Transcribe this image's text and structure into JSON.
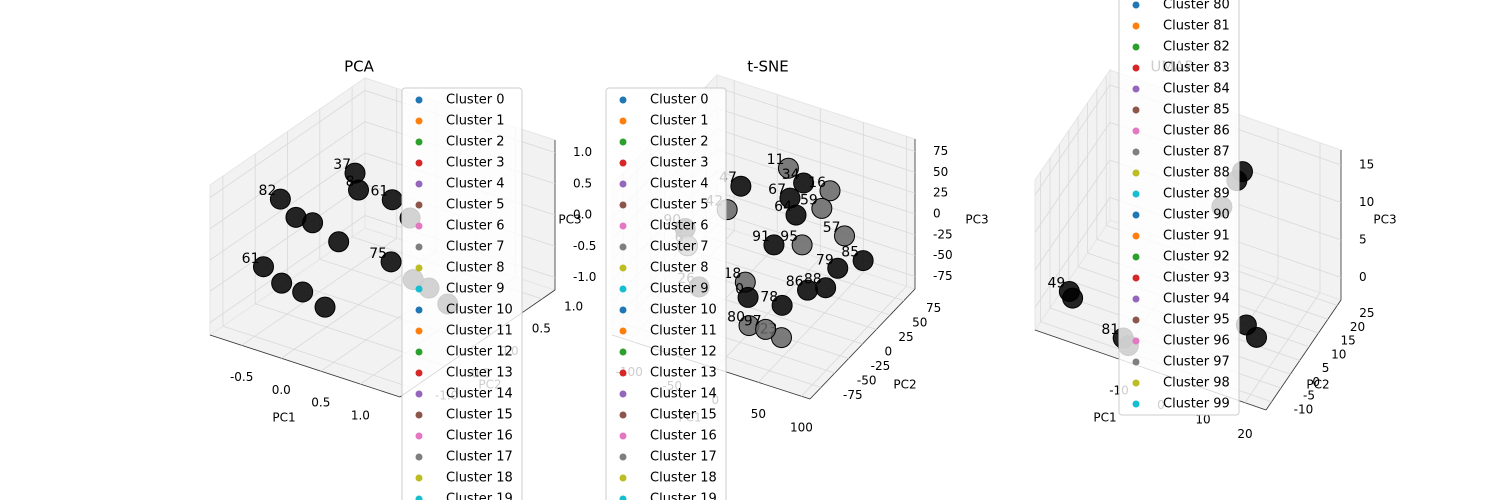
{
  "chart_data": [
    {
      "type": "scatter3d",
      "title": "PCA",
      "xlabel": "PC1",
      "ylabel": "PC2",
      "zlabel": "PC3",
      "xlim": [
        -0.9,
        1.5
      ],
      "ylim": [
        -1.2,
        1.2
      ],
      "zlim": [
        -1.2,
        1.2
      ],
      "xticks": [
        -0.5,
        {
          "value": 0,
          "label": "0.0"
        },
        0.5,
        {
          "value": 1,
          "label": "1.0"
        }
      ],
      "yticks": [
        {
          "value": -1,
          "label": "-1.0"
        },
        -0.5,
        {
          "value": 0,
          "label": "0.0"
        },
        0.5,
        {
          "value": 1,
          "label": "1.0"
        }
      ],
      "zticks": [
        {
          "value": -1,
          "label": "-1.0"
        },
        -0.5,
        {
          "value": 0,
          "label": "0.0"
        },
        0.5,
        {
          "value": 1,
          "label": "1.0"
        }
      ],
      "grid": true,
      "pane_color": "#f2f2f2",
      "legend": [
        {
          "name": "Cluster 0",
          "color": "#1f77b4"
        },
        {
          "name": "Cluster 1",
          "color": "#ff7f0e"
        },
        {
          "name": "Cluster 2",
          "color": "#2ca02c"
        },
        {
          "name": "Cluster 3",
          "color": "#d62728"
        },
        {
          "name": "Cluster 4",
          "color": "#9467bd"
        },
        {
          "name": "Cluster 5",
          "color": "#8c564b"
        },
        {
          "name": "Cluster 6",
          "color": "#e377c2"
        },
        {
          "name": "Cluster 7",
          "color": "#7f7f7f"
        },
        {
          "name": "Cluster 8",
          "color": "#bcbd22"
        },
        {
          "name": "Cluster 9",
          "color": "#17becf"
        },
        {
          "name": "Cluster 10",
          "color": "#1f77b4"
        },
        {
          "name": "Cluster 11",
          "color": "#ff7f0e"
        },
        {
          "name": "Cluster 12",
          "color": "#2ca02c"
        },
        {
          "name": "Cluster 13",
          "color": "#d62728"
        },
        {
          "name": "Cluster 14",
          "color": "#9467bd"
        },
        {
          "name": "Cluster 15",
          "color": "#8c564b"
        },
        {
          "name": "Cluster 16",
          "color": "#e377c2"
        },
        {
          "name": "Cluster 17",
          "color": "#7f7f7f"
        },
        {
          "name": "Cluster 18",
          "color": "#bcbd22"
        },
        {
          "name": "Cluster 19",
          "color": "#17becf"
        }
      ],
      "points": {
        "x": [
          -0.68,
          -0.32,
          -0.11,
          0.35,
          0.01,
          0.25,
          0.66,
          1.04,
          -0.73,
          -0.37,
          -0.08,
          0.3,
          0.49,
          0.9,
          1.14,
          1.5
        ],
        "y": [
          -0.38,
          -0.58,
          -0.58,
          -0.74,
          -0.07,
          -0.31,
          -0.29,
          -0.48,
          -0.58,
          -0.74,
          -0.77,
          -0.89,
          -0.1,
          -0.26,
          -0.31,
          -0.46
        ],
        "z": [
          0.48,
          0.48,
          0.48,
          0.48,
          0.96,
          0.96,
          0.96,
          0.96,
          -0.48,
          -0.48,
          -0.48,
          -0.48,
          -0.24,
          -0.24,
          -0.24,
          -0.24
        ],
        "color": [
          "#000000",
          "#000000",
          "#000000",
          "#000000",
          "#000000",
          "#000000",
          "#000000",
          "#000000",
          "#000000",
          "#000000",
          "#000000",
          "#000000",
          "#000000",
          "#000000",
          "#000000",
          "#000000"
        ],
        "labels": [
          "82",
          null,
          null,
          null,
          "37",
          "8",
          "61",
          null,
          "61",
          null,
          null,
          null,
          "75",
          null,
          null,
          null
        ]
      }
    },
    {
      "type": "scatter3d",
      "title": "t-SNE",
      "xlabel": "PC1",
      "ylabel": "PC2",
      "zlabel": "PC3",
      "xlim": [
        -120,
        110
      ],
      "ylim": [
        -95,
        95
      ],
      "zlim": [
        -90,
        90
      ],
      "xticks": [
        -100,
        -50,
        0,
        50,
        100
      ],
      "yticks": [
        -75,
        -50,
        -25,
        0,
        25,
        50,
        75
      ],
      "zticks": [
        -75,
        -50,
        -25,
        0,
        25,
        50,
        75
      ],
      "grid": true,
      "pane_color": "#f2f2f2",
      "legend": [
        {
          "name": "Cluster 0",
          "color": "#1f77b4"
        },
        {
          "name": "Cluster 1",
          "color": "#ff7f0e"
        },
        {
          "name": "Cluster 2",
          "color": "#2ca02c"
        },
        {
          "name": "Cluster 3",
          "color": "#d62728"
        },
        {
          "name": "Cluster 4",
          "color": "#9467bd"
        },
        {
          "name": "Cluster 5",
          "color": "#8c564b"
        },
        {
          "name": "Cluster 6",
          "color": "#e377c2"
        },
        {
          "name": "Cluster 7",
          "color": "#7f7f7f"
        },
        {
          "name": "Cluster 8",
          "color": "#bcbd22"
        },
        {
          "name": "Cluster 9",
          "color": "#17becf"
        },
        {
          "name": "Cluster 10",
          "color": "#1f77b4"
        },
        {
          "name": "Cluster 11",
          "color": "#ff7f0e"
        },
        {
          "name": "Cluster 12",
          "color": "#2ca02c"
        },
        {
          "name": "Cluster 13",
          "color": "#d62728"
        },
        {
          "name": "Cluster 14",
          "color": "#9467bd"
        },
        {
          "name": "Cluster 15",
          "color": "#8c564b"
        },
        {
          "name": "Cluster 16",
          "color": "#e377c2"
        },
        {
          "name": "Cluster 17",
          "color": "#7f7f7f"
        },
        {
          "name": "Cluster 18",
          "color": "#bcbd22"
        },
        {
          "name": "Cluster 19",
          "color": "#17becf"
        }
      ],
      "points": {
        "x": [
          -3,
          53,
          23,
          11,
          48,
          18,
          66,
          62,
          78,
          -30,
          -35,
          -69,
          -65,
          11,
          36,
          -58,
          -21,
          -12,
          25,
          41,
          55,
          0,
          39,
          18
        ],
        "y": [
          42,
          30,
          29,
          23,
          23,
          23,
          36,
          30,
          51,
          -2,
          -19,
          -42,
          -44,
          -6,
          6,
          -34,
          -8,
          -17,
          -13,
          8,
          19,
          -34,
          -36,
          -32
        ],
        "z": [
          54,
          54,
          54,
          36,
          36,
          18,
          0,
          -36,
          -36,
          54,
          36,
          18,
          0,
          0,
          0,
          -54,
          -54,
          -63,
          -63,
          -54,
          -54,
          -81,
          -81,
          -81
        ],
        "color": [
          "#666666",
          "#666666",
          "#000000",
          "#000000",
          "#666666",
          "#000000",
          "#666666",
          "#000000",
          "#000000",
          "#000000",
          "#666666",
          "#000000",
          "#666666",
          "#000000",
          "#666666",
          "#000000",
          "#666666",
          "#000000",
          "#000000",
          "#000000",
          "#000000",
          "#666666",
          "#666666",
          "#666666"
        ],
        "labels": [
          "11",
          "16",
          "34",
          "67",
          "59",
          "64",
          "57",
          "79",
          "85",
          "47",
          "42",
          "90",
          "6",
          "91",
          "95",
          "26",
          "18",
          "0",
          "78",
          "86",
          "88",
          "80",
          "23",
          "97"
        ]
      }
    },
    {
      "type": "scatter3d",
      "title": "UMAP",
      "xlabel": "PC1",
      "ylabel": "PC2",
      "zlabel": "PC3",
      "xlim": [
        -30,
        25
      ],
      "ylim": [
        -13,
        27
      ],
      "zlim": [
        -3,
        17
      ],
      "xticks": [
        -10,
        0,
        10,
        20
      ],
      "yticks": [
        -10,
        -5,
        0,
        5,
        10,
        15,
        20,
        25
      ],
      "zticks": [
        0,
        5,
        10,
        15
      ],
      "grid": true,
      "pane_color": "#f2f2f2",
      "legend": [
        {
          "name": "Cluster 80",
          "color": "#1f77b4"
        },
        {
          "name": "Cluster 81",
          "color": "#ff7f0e"
        },
        {
          "name": "Cluster 82",
          "color": "#2ca02c"
        },
        {
          "name": "Cluster 83",
          "color": "#d62728"
        },
        {
          "name": "Cluster 84",
          "color": "#9467bd"
        },
        {
          "name": "Cluster 85",
          "color": "#8c564b"
        },
        {
          "name": "Cluster 86",
          "color": "#e377c2"
        },
        {
          "name": "Cluster 87",
          "color": "#7f7f7f"
        },
        {
          "name": "Cluster 88",
          "color": "#bcbd22"
        },
        {
          "name": "Cluster 89",
          "color": "#17becf"
        },
        {
          "name": "Cluster 90",
          "color": "#1f77b4"
        },
        {
          "name": "Cluster 91",
          "color": "#ff7f0e"
        },
        {
          "name": "Cluster 92",
          "color": "#2ca02c"
        },
        {
          "name": "Cluster 93",
          "color": "#d62728"
        },
        {
          "name": "Cluster 94",
          "color": "#9467bd"
        },
        {
          "name": "Cluster 95",
          "color": "#8c564b"
        },
        {
          "name": "Cluster 96",
          "color": "#e377c2"
        },
        {
          "name": "Cluster 97",
          "color": "#7f7f7f"
        },
        {
          "name": "Cluster 98",
          "color": "#bcbd22"
        },
        {
          "name": "Cluster 99",
          "color": "#17becf"
        }
      ],
      "points": {
        "x": [
          6.9,
          6,
          3.6,
          -24.5,
          -23.5,
          -9,
          -8,
          13,
          15.6
        ],
        "y": [
          15,
          14,
          11.4,
          -7,
          -7.5,
          -13,
          -12.5,
          3.4,
          3
        ],
        "z": [
          15,
          14,
          11,
          1,
          0.5,
          0,
          -1,
          0,
          -1
        ],
        "color": [
          "#000000",
          "#000000",
          "#000000",
          "#000000",
          "#000000",
          "#000000",
          "#000000",
          "#000000",
          "#000000"
        ],
        "labels": [
          null,
          null,
          null,
          "49",
          null,
          "81",
          null,
          null,
          null
        ]
      }
    }
  ]
}
